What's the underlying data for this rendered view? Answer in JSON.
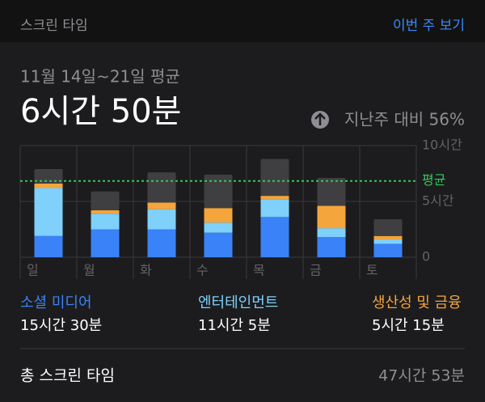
{
  "header": {
    "title": "스크린 타임",
    "action": "이번 주 보기"
  },
  "summary": {
    "period": "11월 14일~21일 평균",
    "average": "6시간 50분",
    "change": "지난주 대비 56%"
  },
  "chart_data": {
    "type": "stacked_bar",
    "categories": [
      "일",
      "월",
      "화",
      "수",
      "목",
      "금",
      "토"
    ],
    "series": [
      {
        "name": "소셜 미디어",
        "time": "15시간 30분",
        "color": "#3a82f7",
        "values": [
          1.9,
          2.5,
          2.5,
          2.2,
          3.6,
          1.8,
          1.2
        ]
      },
      {
        "name": "엔터테인먼트",
        "time": "11시간 5분",
        "color": "#7fd0fb",
        "values": [
          4.3,
          1.4,
          1.8,
          0.9,
          1.6,
          0.8,
          0.4
        ]
      },
      {
        "name": "생산성 및 금융",
        "time": "5시간 15분",
        "color": "#f4a53b",
        "values": [
          0.4,
          0.3,
          0.6,
          1.3,
          0.3,
          2.0,
          0.3
        ]
      },
      {
        "color": "#3f3f42",
        "values": [
          1.3,
          1.7,
          2.7,
          3.0,
          3.3,
          2.5,
          1.5
        ]
      }
    ],
    "ylim": [
      0,
      10
    ],
    "yticks": [
      0,
      {
        "value": 5,
        "label": "5시간"
      },
      {
        "value": 10,
        "label": "10시간"
      }
    ],
    "average_line": {
      "value": 6.83,
      "label": "평균",
      "color": "#34c759"
    },
    "grid": true
  },
  "total": {
    "label": "총 스크린 타임",
    "value": "47시간 53분"
  }
}
